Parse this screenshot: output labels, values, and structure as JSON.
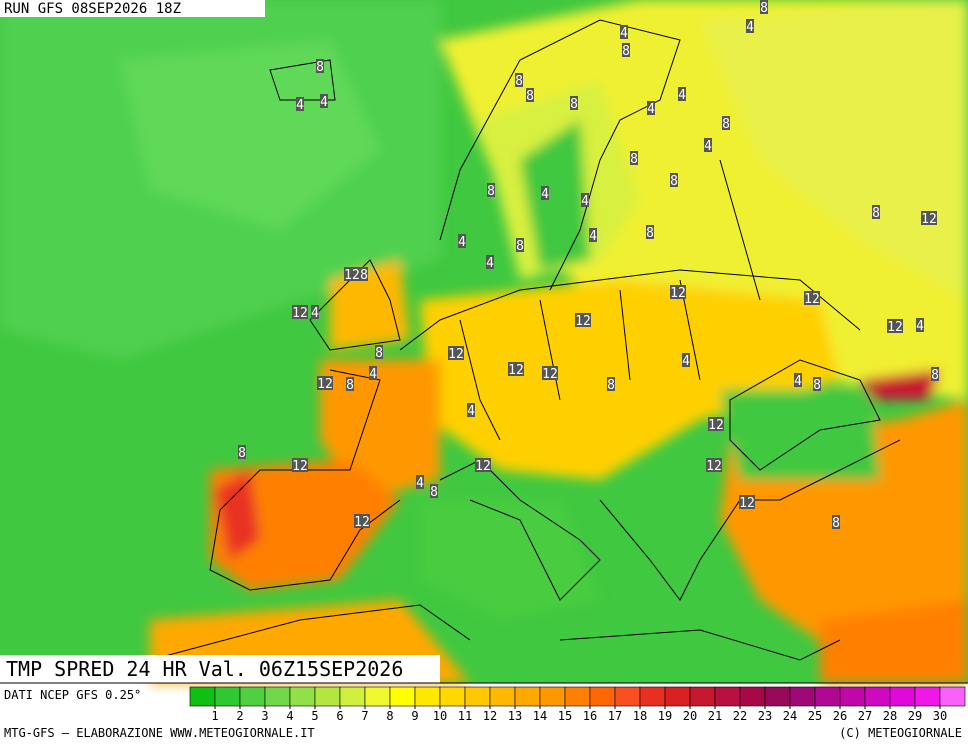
{
  "header": {
    "run": "RUN GFS 08SEP2026 18Z"
  },
  "title": "TMP SPRED 24 HR Val. 06Z15SEP2026",
  "source": "DATI NCEP GFS 0.25°",
  "footer": {
    "left": "MTG-GFS — ELABORAZIONE WWW.METEOGIORNALE.IT",
    "right": "(C) METEOGIORNALE"
  },
  "colorbar": {
    "ticks": [
      1,
      2,
      3,
      4,
      5,
      6,
      7,
      8,
      9,
      10,
      11,
      12,
      13,
      14,
      15,
      16,
      17,
      18,
      19,
      20,
      21,
      22,
      23,
      24,
      25,
      26,
      27,
      28,
      29,
      30
    ],
    "colors": [
      "#10c010",
      "#30c830",
      "#50d040",
      "#70d848",
      "#90e048",
      "#b0e840",
      "#d0f040",
      "#f0f830",
      "#ffff00",
      "#ffe800",
      "#ffd800",
      "#ffc800",
      "#ffb800",
      "#ffa800",
      "#ff9800",
      "#ff8000",
      "#ff6800",
      "#f85020",
      "#e83020",
      "#d82020",
      "#c81830",
      "#b81040",
      "#a80848",
      "#980858",
      "#a00878",
      "#b00890",
      "#c008a8",
      "#d008c0",
      "#e008d8",
      "#f018e8",
      "#f860f8"
    ]
  },
  "contour_labels": [
    8,
    4,
    8,
    4,
    8,
    4,
    4,
    8,
    8,
    8,
    4,
    4,
    8,
    4,
    8,
    8,
    8,
    4,
    4,
    8,
    4,
    8,
    12,
    4,
    8,
    4,
    12,
    12,
    8,
    12,
    4,
    12,
    12,
    4,
    12,
    12,
    8,
    4,
    12,
    8,
    4,
    12,
    12,
    8,
    4,
    8,
    8,
    4,
    12,
    8,
    12,
    12,
    12,
    4,
    8,
    12,
    12,
    8
  ]
}
